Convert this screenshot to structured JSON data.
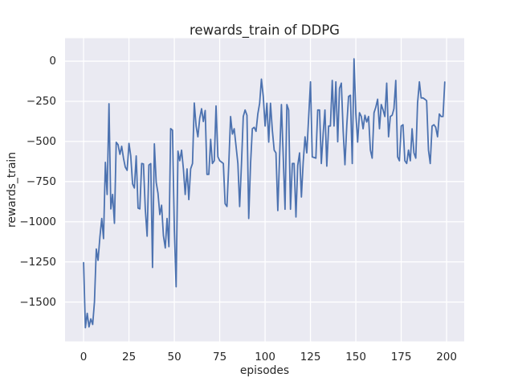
{
  "figure": {
    "title": "rewards_train of DDPG",
    "background_color": "#ffffff",
    "plot_background_color": "#eaeaf2",
    "grid_color": "#ffffff",
    "text_color": "#262626"
  },
  "chart_data": {
    "type": "line",
    "title": "rewards_train of DDPG",
    "xlabel": "episodes",
    "ylabel": "rewards_train",
    "grid": true,
    "legend": false,
    "x_ticks": [
      0,
      25,
      50,
      75,
      100,
      125,
      150,
      175,
      200
    ],
    "y_ticks": [
      0,
      -250,
      -500,
      -750,
      -1000,
      -1250,
      -1500
    ],
    "xlim": [
      -10.2,
      209.7
    ],
    "ylim": [
      -1745,
      143
    ],
    "series": [
      {
        "name": "rewards_train",
        "color": "#4c72b0",
        "x_start": 0,
        "x_step": 1,
        "values": [
          -1255,
          -1660,
          -1570,
          -1655,
          -1605,
          -1640,
          -1500,
          -1170,
          -1240,
          -1095,
          -980,
          -1105,
          -630,
          -830,
          -265,
          -920,
          -830,
          -1010,
          -505,
          -520,
          -580,
          -530,
          -605,
          -660,
          -680,
          -512,
          -590,
          -765,
          -790,
          -590,
          -915,
          -920,
          -637,
          -640,
          -920,
          -1090,
          -647,
          -638,
          -1285,
          -515,
          -755,
          -822,
          -955,
          -897,
          -1088,
          -1163,
          -980,
          -1155,
          -420,
          -430,
          -1050,
          -1405,
          -560,
          -620,
          -554,
          -674,
          -830,
          -671,
          -862,
          -671,
          -637,
          -261,
          -405,
          -471,
          -355,
          -296,
          -376,
          -307,
          -705,
          -705,
          -487,
          -637,
          -620,
          -279,
          -595,
          -620,
          -628,
          -637,
          -888,
          -905,
          -637,
          -345,
          -454,
          -421,
          -529,
          -637,
          -905,
          -637,
          -345,
          -304,
          -337,
          -980,
          -637,
          -421,
          -412,
          -437,
          -329,
          -262,
          -112,
          -220,
          -404,
          -262,
          -504,
          -262,
          -430,
          -554,
          -571,
          -930,
          -600,
          -270,
          -600,
          -922,
          -270,
          -304,
          -922,
          -637,
          -637,
          -971,
          -650,
          -571,
          -846,
          -630,
          -471,
          -571,
          -350,
          -129,
          -596,
          -600,
          -604,
          -304,
          -304,
          -637,
          -450,
          -304,
          -654,
          -404,
          -404,
          -120,
          -404,
          -129,
          -502,
          -170,
          -137,
          -437,
          -645,
          -400,
          -220,
          -212,
          -637,
          15,
          -329,
          -504,
          -321,
          -345,
          -421,
          -337,
          -379,
          -345,
          -554,
          -604,
          -321,
          -287,
          -237,
          -421,
          -270,
          -304,
          -345,
          -137,
          -471,
          -345,
          -337,
          -296,
          -120,
          -596,
          -620,
          -404,
          -396,
          -620,
          -637,
          -554,
          -620,
          -421,
          -571,
          -604,
          -262,
          -129,
          -229,
          -229,
          -237,
          -246,
          -554,
          -637,
          -404,
          -396,
          -412,
          -471,
          -329,
          -345,
          -345,
          -130
        ]
      }
    ]
  }
}
